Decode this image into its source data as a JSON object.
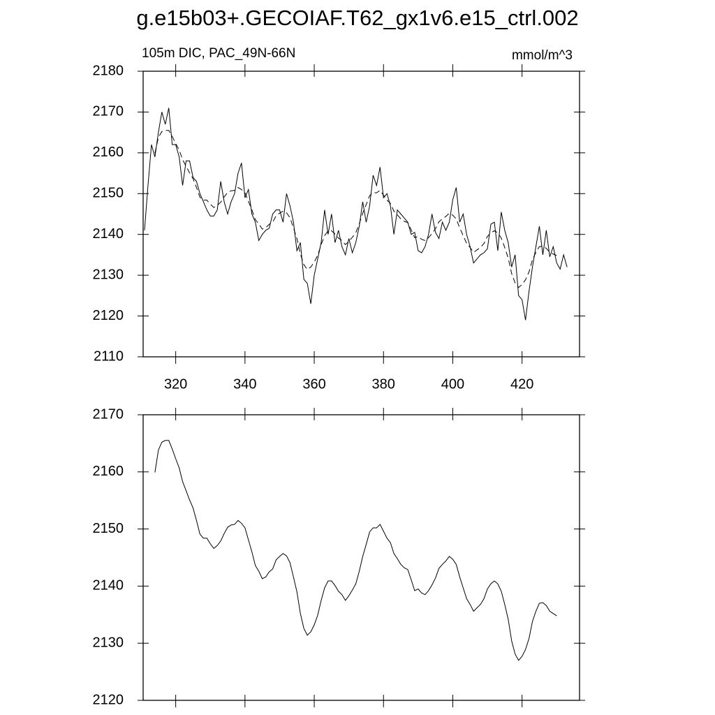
{
  "chart_data": [
    {
      "type": "line",
      "title": "g.e15b03+.GECOIAF.T62_gx1v6.e15_ctrl.002",
      "subtitle_left": "105m DIC, PAC_49N-66N",
      "subtitle_right": "mmol/m^3",
      "xlim": [
        310.6,
        436.6
      ],
      "xticks": [
        320,
        340,
        360,
        380,
        400,
        420
      ],
      "ylim": [
        2110,
        2180
      ],
      "yticks": [
        2110,
        2120,
        2130,
        2140,
        2150,
        2160,
        2170,
        2180
      ],
      "series": [
        {
          "color": "#000000",
          "dash": false,
          "x": [
            311,
            312,
            313,
            314,
            315,
            316,
            317,
            318,
            319,
            320,
            321,
            322,
            323,
            324,
            325,
            326,
            327,
            328,
            329,
            330,
            331,
            332,
            333,
            334,
            335,
            336,
            337,
            338,
            339,
            340,
            341,
            342,
            343,
            344,
            345,
            346,
            347,
            348,
            349,
            350,
            351,
            352,
            353,
            354,
            355,
            356,
            357,
            358,
            359,
            360,
            361,
            362,
            363,
            364,
            365,
            366,
            367,
            368,
            369,
            370,
            371,
            372,
            373,
            374,
            375,
            376,
            377,
            378,
            379,
            380,
            381,
            382,
            383,
            384,
            385,
            386,
            387,
            388,
            389,
            390,
            391,
            392,
            393,
            394,
            395,
            396,
            397,
            398,
            399,
            400,
            401,
            402,
            403,
            404,
            405,
            406,
            407,
            408,
            409,
            410,
            411,
            412,
            413,
            414,
            415,
            416,
            417,
            418,
            419,
            420,
            421,
            422,
            423,
            424,
            425,
            426,
            427,
            428,
            429,
            430,
            431,
            432,
            433
          ],
          "values": [
            2141,
            2152,
            2162,
            2159,
            2165,
            2170,
            2167,
            2171,
            2162,
            2162,
            2159,
            2152,
            2158,
            2158,
            2154,
            2153,
            2150,
            2148,
            2146,
            2144.5,
            2144.5,
            2146,
            2153,
            2148,
            2145,
            2148,
            2150,
            2155,
            2157.5,
            2149,
            2151,
            2145,
            2143,
            2138.5,
            2140,
            2141,
            2141.5,
            2145,
            2146,
            2146,
            2143,
            2150,
            2147,
            2143,
            2136,
            2138,
            2129,
            2128,
            2123,
            2130,
            2134,
            2138,
            2146,
            2140,
            2145,
            2138,
            2141,
            2137,
            2135,
            2139,
            2135.5,
            2138,
            2142,
            2148,
            2143,
            2147,
            2154.5,
            2152,
            2156.5,
            2149,
            2150,
            2147,
            2140,
            2146,
            2145,
            2144,
            2143,
            2140,
            2140.5,
            2136,
            2135.5,
            2137,
            2140,
            2145,
            2140.5,
            2139,
            2143,
            2141,
            2143,
            2148.5,
            2151.5,
            2143,
            2145,
            2140,
            2137,
            2133,
            2134,
            2135,
            2135.5,
            2136.5,
            2142.5,
            2143,
            2136,
            2145.5,
            2141,
            2138,
            2132,
            2135,
            2125,
            2124,
            2119,
            2126,
            2132,
            2137,
            2142,
            2135,
            2141,
            2134.5,
            2137,
            2133,
            2131.5,
            2135,
            2132
          ]
        },
        {
          "color": "#000000",
          "dash": true,
          "x": [
            314,
            315,
            316,
            317,
            318,
            319,
            320,
            321,
            322,
            323,
            324,
            325,
            326,
            327,
            328,
            329,
            330,
            331,
            332,
            333,
            334,
            335,
            336,
            337,
            338,
            339,
            340,
            341,
            342,
            343,
            344,
            345,
            346,
            347,
            348,
            349,
            350,
            351,
            352,
            353,
            354,
            355,
            356,
            357,
            358,
            359,
            360,
            361,
            362,
            363,
            364,
            365,
            366,
            367,
            368,
            369,
            370,
            371,
            372,
            373,
            374,
            375,
            376,
            377,
            378,
            379,
            380,
            381,
            382,
            383,
            384,
            385,
            386,
            387,
            388,
            389,
            390,
            391,
            392,
            393,
            394,
            395,
            396,
            397,
            398,
            399,
            400,
            401,
            402,
            403,
            404,
            405,
            406,
            407,
            408,
            409,
            410,
            411,
            412,
            413,
            414,
            415,
            416,
            417,
            418,
            419,
            420,
            421,
            422,
            423,
            424,
            425,
            426,
            427,
            428,
            429,
            430
          ],
          "values": [
            2159.9,
            2163.8,
            2165.2,
            2165.5,
            2165.5,
            2164,
            2162.3,
            2160.7,
            2158.3,
            2156.7,
            2155.1,
            2153.7,
            2151.5,
            2149.1,
            2148.4,
            2148.4,
            2147.4,
            2146.6,
            2147.1,
            2147.9,
            2149.2,
            2150.3,
            2150.7,
            2150.8,
            2151.5,
            2151,
            2150.2,
            2148.1,
            2146,
            2143.6,
            2142.6,
            2141.3,
            2141.6,
            2142.5,
            2143,
            2144.6,
            2145.2,
            2145.7,
            2145.3,
            2144.1,
            2141.6,
            2139,
            2135.2,
            2132.6,
            2131.4,
            2132,
            2133.2,
            2134.9,
            2137.5,
            2139.7,
            2140.9,
            2140.9,
            2140.1,
            2139.1,
            2138.5,
            2137.5,
            2138.3,
            2139.3,
            2140.4,
            2142.6,
            2145.2,
            2147.3,
            2149.5,
            2150.2,
            2150.2,
            2150.8,
            2149.6,
            2148.4,
            2147.6,
            2145.7,
            2144.8,
            2143.8,
            2143.2,
            2142.9,
            2141.1,
            2139.2,
            2139.5,
            2138.8,
            2138.5,
            2139.2,
            2140.2,
            2141.4,
            2143.1,
            2143.8,
            2144.4,
            2145.2,
            2144.7,
            2143.8,
            2141.6,
            2139.7,
            2137.8,
            2136.8,
            2135.6,
            2136.2,
            2136.8,
            2137.8,
            2139.5,
            2140.4,
            2140.9,
            2140.4,
            2139.1,
            2136.8,
            2134.2,
            2130.4,
            2128.1,
            2127,
            2127.7,
            2128.9,
            2130.8,
            2133.8,
            2135.6,
            2137,
            2137.1,
            2136.6,
            2135.6,
            2135.2,
            2134.8
          ]
        }
      ]
    },
    {
      "type": "line",
      "xlim": [
        310.6,
        436.6
      ],
      "xticks": [
        320,
        340,
        360,
        380,
        400,
        420
      ],
      "ylim": [
        2120,
        2170
      ],
      "yticks": [
        2120,
        2130,
        2140,
        2150,
        2160,
        2170
      ],
      "series": [
        {
          "color": "#000000",
          "dash": false,
          "x": [
            314,
            315,
            316,
            317,
            318,
            319,
            320,
            321,
            322,
            323,
            324,
            325,
            326,
            327,
            328,
            329,
            330,
            331,
            332,
            333,
            334,
            335,
            336,
            337,
            338,
            339,
            340,
            341,
            342,
            343,
            344,
            345,
            346,
            347,
            348,
            349,
            350,
            351,
            352,
            353,
            354,
            355,
            356,
            357,
            358,
            359,
            360,
            361,
            362,
            363,
            364,
            365,
            366,
            367,
            368,
            369,
            370,
            371,
            372,
            373,
            374,
            375,
            376,
            377,
            378,
            379,
            380,
            381,
            382,
            383,
            384,
            385,
            386,
            387,
            388,
            389,
            390,
            391,
            392,
            393,
            394,
            395,
            396,
            397,
            398,
            399,
            400,
            401,
            402,
            403,
            404,
            405,
            406,
            407,
            408,
            409,
            410,
            411,
            412,
            413,
            414,
            415,
            416,
            417,
            418,
            419,
            420,
            421,
            422,
            423,
            424,
            425,
            426,
            427,
            428,
            429,
            430
          ],
          "values": [
            2159.9,
            2163.8,
            2165.2,
            2165.5,
            2165.5,
            2164,
            2162.3,
            2160.7,
            2158.3,
            2156.7,
            2155.1,
            2153.7,
            2151.5,
            2149.1,
            2148.4,
            2148.4,
            2147.4,
            2146.6,
            2147.1,
            2147.9,
            2149.2,
            2150.3,
            2150.7,
            2150.8,
            2151.5,
            2151,
            2150.2,
            2148.1,
            2146,
            2143.6,
            2142.6,
            2141.3,
            2141.6,
            2142.5,
            2143,
            2144.6,
            2145.2,
            2145.7,
            2145.3,
            2144.1,
            2141.6,
            2139,
            2135.2,
            2132.6,
            2131.4,
            2132,
            2133.2,
            2134.9,
            2137.5,
            2139.7,
            2140.9,
            2140.9,
            2140.1,
            2139.1,
            2138.5,
            2137.5,
            2138.3,
            2139.3,
            2140.4,
            2142.6,
            2145.2,
            2147.3,
            2149.5,
            2150.2,
            2150.2,
            2150.8,
            2149.6,
            2148.4,
            2147.6,
            2145.7,
            2144.8,
            2143.8,
            2143.2,
            2142.9,
            2141.1,
            2139.2,
            2139.5,
            2138.8,
            2138.5,
            2139.2,
            2140.2,
            2141.4,
            2143.1,
            2143.8,
            2144.4,
            2145.2,
            2144.7,
            2143.8,
            2141.6,
            2139.7,
            2137.8,
            2136.8,
            2135.6,
            2136.2,
            2136.8,
            2137.8,
            2139.5,
            2140.4,
            2140.9,
            2140.4,
            2139.1,
            2136.8,
            2134.2,
            2130.4,
            2128.1,
            2127,
            2127.7,
            2128.9,
            2130.8,
            2133.8,
            2135.6,
            2137,
            2137.1,
            2136.6,
            2135.6,
            2135.2,
            2134.8
          ]
        }
      ]
    }
  ]
}
